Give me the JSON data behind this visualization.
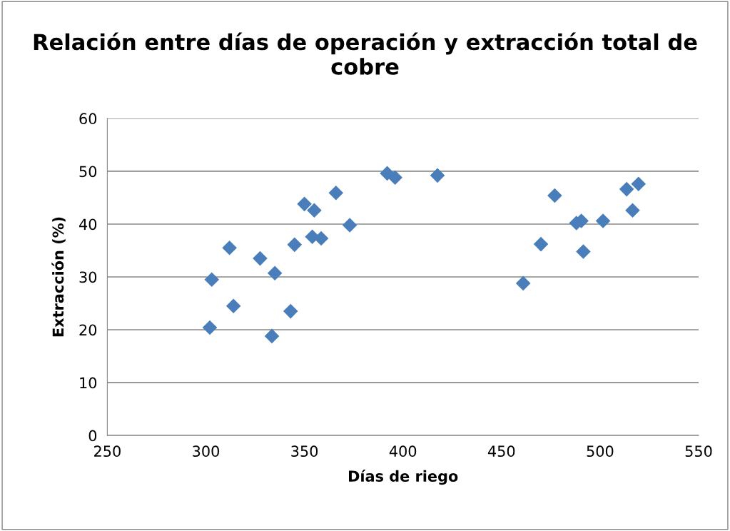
{
  "chart_data": {
    "type": "scatter",
    "title": "Relación entre días de operación y extracción total de cobre",
    "xlabel": "Días de riego",
    "ylabel": "Extracción (%)",
    "x": [
      302,
      303,
      312,
      314,
      327.5,
      335,
      333.5,
      343,
      345,
      350,
      355,
      354,
      358.5,
      366,
      373,
      392,
      396,
      417.5,
      461,
      470,
      477,
      488,
      490.5,
      491.5,
      501.5,
      513.5,
      516.5,
      519.5
    ],
    "series": [
      {
        "color": "#4a7ebb",
        "values": [
          20.4,
          29.5,
          35.5,
          24.5,
          33.5,
          30.7,
          18.8,
          23.5,
          36.1,
          43.8,
          42.6,
          37.6,
          37.3,
          45.9,
          39.8,
          49.6,
          48.8,
          49.2,
          28.8,
          36.2,
          45.4,
          40.2,
          40.6,
          34.8,
          40.6,
          46.6,
          42.6,
          47.6
        ]
      }
    ],
    "xlim": [
      250,
      550
    ],
    "xticks": [
      250,
      300,
      350,
      400,
      450,
      500,
      550
    ],
    "ylim": [
      0,
      60
    ],
    "yticks": [
      0,
      10,
      20,
      30,
      40,
      50,
      60
    ],
    "grid": "y",
    "marker": "diamond",
    "legend": false
  }
}
